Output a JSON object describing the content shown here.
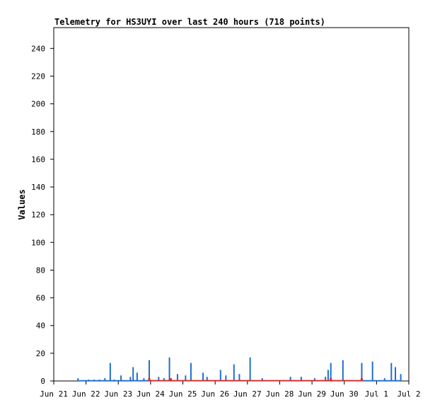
{
  "chart_data": {
    "type": "line",
    "title": "Telemetry for HS3UYI over last 240 hours (718 points)",
    "xlabel": "",
    "ylabel": "Values",
    "ylim": [
      0,
      255
    ],
    "yticks": [
      0,
      20,
      40,
      60,
      80,
      100,
      120,
      140,
      160,
      180,
      200,
      220,
      240
    ],
    "xlim": [
      "Jun 21 00:00",
      "Jul 2 00:00"
    ],
    "xticks": [
      "Jun 21",
      "Jun 22",
      "Jun 23",
      "Jun 24",
      "Jun 25",
      "Jun 26",
      "Jun 27",
      "Jun 28",
      "Jun 29",
      "Jun 30",
      "Jul 1",
      "Jul 2"
    ],
    "grid": false,
    "legend": "none",
    "series": [
      {
        "color": "#1f6fd0",
        "x": [
          "Jun 21 18:00",
          "Jun 22 02:00",
          "Jun 22 06:00",
          "Jun 22 10:00",
          "Jun 22 14:00",
          "Jun 22 18:00",
          "Jun 22 21:00",
          "Jun 23 02:00",
          "Jun 23 09:00",
          "Jun 23 11:00",
          "Jun 23 14:00",
          "Jun 23 19:00",
          "Jun 23 23:00",
          "Jun 24 06:00",
          "Jun 24 10:00",
          "Jun 24 14:00",
          "Jun 24 20:00",
          "Jun 25 02:00",
          "Jun 25 06:00",
          "Jun 25 15:00",
          "Jun 25 18:00",
          "Jun 26 04:00",
          "Jun 26 08:00",
          "Jun 26 14:00",
          "Jun 26 18:00",
          "Jun 27 02:00",
          "Jun 27 11:00",
          "Jun 28 08:00",
          "Jun 28 16:00",
          "Jun 29 02:00",
          "Jun 29 10:00",
          "Jun 29 12:00",
          "Jun 29 14:00",
          "Jun 29 23:00",
          "Jun 30 13:00",
          "Jun 30 21:00",
          "Jul 1 06:00",
          "Jul 1 11:00",
          "Jul 1 14:00",
          "Jul 1 18:00"
        ],
        "y": [
          2,
          1,
          1,
          1,
          2,
          13,
          1,
          4,
          3,
          10,
          6,
          2,
          15,
          3,
          2,
          17,
          5,
          4,
          13,
          6,
          3,
          8,
          4,
          12,
          5,
          17,
          2,
          3,
          3,
          2,
          3,
          8,
          13,
          15,
          13,
          14,
          2,
          13,
          10,
          5
        ]
      },
      {
        "color": "#e0281e",
        "x": [
          "Jun 23 23:00",
          "Jun 24 15:00",
          "Jun 29 14:00",
          "Jun 30 13:00"
        ],
        "y": [
          2,
          2,
          2,
          2
        ]
      }
    ]
  }
}
